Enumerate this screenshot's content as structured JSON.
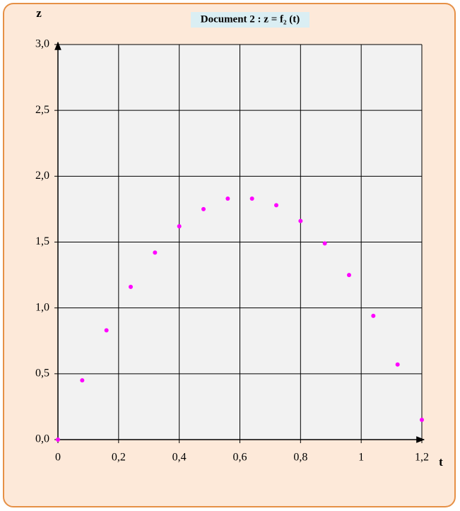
{
  "chart_data": {
    "type": "scatter",
    "title": "Document 2 : z = f₂ (t)",
    "x_label": "t",
    "y_label": "z",
    "x": [
      0,
      0.08,
      0.16,
      0.24,
      0.32,
      0.4,
      0.48,
      0.56,
      0.64,
      0.72,
      0.8,
      0.88,
      0.96,
      1.04,
      1.12,
      1.2
    ],
    "values": [
      0,
      0.45,
      0.83,
      1.16,
      1.42,
      1.62,
      1.75,
      1.83,
      1.83,
      1.78,
      1.66,
      1.49,
      1.25,
      0.94,
      0.57,
      0.15
    ],
    "color": "#ff00ff",
    "xlim": [
      0,
      1.2
    ],
    "ylim": [
      0,
      3
    ],
    "xticks": [
      0,
      {
        "value": 0.2,
        "label": "0,2"
      },
      {
        "value": 0.4,
        "label": "0,4"
      },
      {
        "value": 0.6,
        "label": "0,6"
      },
      {
        "value": 0.8,
        "label": "0,8"
      },
      1,
      {
        "value": 1.2,
        "label": "1,2"
      }
    ],
    "yticks": [
      {
        "value": 0,
        "label": "0,0"
      },
      {
        "value": 0.5,
        "label": "0,5"
      },
      {
        "value": 1,
        "label": "1,0"
      },
      {
        "value": 1.5,
        "label": "1,5"
      },
      {
        "value": 2,
        "label": "2,0"
      },
      {
        "value": 2.5,
        "label": "2,5"
      },
      {
        "value": 3,
        "label": "3,0"
      }
    ],
    "grid": true
  }
}
